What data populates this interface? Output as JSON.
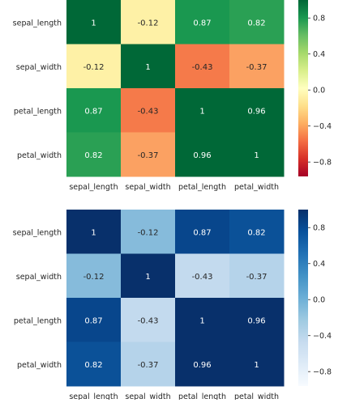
{
  "chart_data": [
    {
      "type": "heatmap",
      "title": "",
      "x_labels": [
        "sepal_length",
        "sepal_width",
        "petal_length",
        "petal_width"
      ],
      "y_labels": [
        "sepal_length",
        "sepal_width",
        "petal_length",
        "petal_width"
      ],
      "values": [
        [
          1,
          -0.12,
          0.87,
          0.82
        ],
        [
          -0.12,
          1,
          -0.43,
          -0.37
        ],
        [
          0.87,
          -0.43,
          1,
          0.96
        ],
        [
          0.82,
          -0.37,
          0.96,
          1
        ]
      ],
      "annotations": [
        [
          "1",
          "-0.12",
          "0.87",
          "0.82"
        ],
        [
          "-0.12",
          "1",
          "-0.43",
          "-0.37"
        ],
        [
          "0.87",
          "-0.43",
          "1",
          "0.96"
        ],
        [
          "0.82",
          "-0.37",
          "0.96",
          "1"
        ]
      ],
      "colormap": "RdYlGn",
      "vmin": -0.96,
      "vmax": 1,
      "colorbar_ticks": [
        "0.8",
        "0.4",
        "0.0",
        "−0.4",
        "−0.8"
      ],
      "colorbar_tick_values": [
        0.8,
        0.4,
        0.0,
        -0.4,
        -0.8
      ],
      "cell_colors": [
        [
          "#006837",
          "#fef1a6",
          "#1a9850",
          "#2aa054"
        ],
        [
          "#fef1a6",
          "#006837",
          "#f57a4a",
          "#fba162"
        ],
        [
          "#1a9850",
          "#f57a4a",
          "#006837",
          "#006837"
        ],
        [
          "#2aa054",
          "#fba162",
          "#006837",
          "#006837"
        ]
      ],
      "colorbar_stops": [
        "#006837",
        "#1a9850",
        "#66bd63",
        "#a6d96a",
        "#d9ef8b",
        "#ffffbf",
        "#fee08b",
        "#fdae61",
        "#f46d43",
        "#d73027",
        "#a50026"
      ]
    },
    {
      "type": "heatmap",
      "title": "",
      "x_labels": [
        "sepal_length",
        "sepal_width",
        "petal_length",
        "petal_width"
      ],
      "y_labels": [
        "sepal_length",
        "sepal_width",
        "petal_length",
        "petal_width"
      ],
      "values": [
        [
          1,
          -0.12,
          0.87,
          0.82
        ],
        [
          -0.12,
          1,
          -0.43,
          -0.37
        ],
        [
          0.87,
          -0.43,
          1,
          0.96
        ],
        [
          0.82,
          -0.37,
          0.96,
          1
        ]
      ],
      "annotations": [
        [
          "1",
          "-0.12",
          "0.87",
          "0.82"
        ],
        [
          "-0.12",
          "1",
          "-0.43",
          "-0.37"
        ],
        [
          "0.87",
          "-0.43",
          "1",
          "0.96"
        ],
        [
          "0.82",
          "-0.37",
          "0.96",
          "1"
        ]
      ],
      "colormap": "Blues",
      "vmin": -0.96,
      "vmax": 1,
      "colorbar_ticks": [
        "0.8",
        "0.4",
        "0.0",
        "−0.4",
        "−0.8"
      ],
      "colorbar_tick_values": [
        0.8,
        0.4,
        0.0,
        -0.4,
        -0.8
      ],
      "cell_colors": [
        [
          "#08306b",
          "#86bbdb",
          "#08468c",
          "#0b5198"
        ],
        [
          "#86bbdb",
          "#08306b",
          "#c3daee",
          "#b5d3ea"
        ],
        [
          "#08468c",
          "#c3daee",
          "#08306b",
          "#08306b"
        ],
        [
          "#0b5198",
          "#b5d3ea",
          "#08306b",
          "#08306b"
        ]
      ],
      "colorbar_stops": [
        "#08306b",
        "#08519c",
        "#2171b5",
        "#4292c6",
        "#6baed6",
        "#9ecae1",
        "#c6dbef",
        "#deebf7",
        "#f7fbff"
      ]
    }
  ]
}
